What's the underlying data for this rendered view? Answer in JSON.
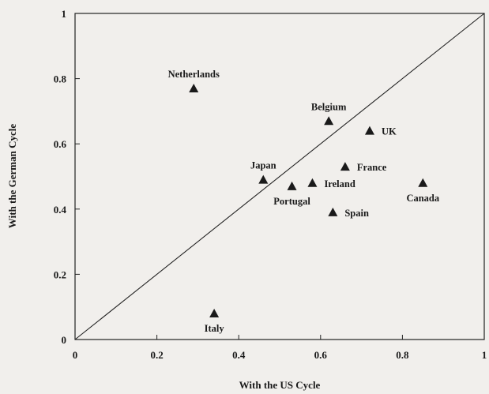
{
  "chart_data": {
    "type": "scatter",
    "xlabel": "With the US Cycle",
    "ylabel": "With the German Cycle",
    "xlim": [
      0,
      1
    ],
    "ylim": [
      0,
      1
    ],
    "xticks": [
      "0",
      "0.2",
      "0.4",
      "0.6",
      "0.8",
      "1"
    ],
    "yticks": [
      "0",
      "0.2",
      "0.4",
      "0.6",
      "0.8",
      "1"
    ],
    "grid": false,
    "diagonal_line": true,
    "marker": "triangle",
    "points": [
      {
        "label": "Netherlands",
        "x": 0.29,
        "y": 0.77,
        "label_pos": "above"
      },
      {
        "label": "Belgium",
        "x": 0.62,
        "y": 0.67,
        "label_pos": "above"
      },
      {
        "label": "UK",
        "x": 0.72,
        "y": 0.64,
        "label_pos": "right"
      },
      {
        "label": "France",
        "x": 0.66,
        "y": 0.53,
        "label_pos": "right"
      },
      {
        "label": "Japan",
        "x": 0.46,
        "y": 0.49,
        "label_pos": "above"
      },
      {
        "label": "Portugal",
        "x": 0.53,
        "y": 0.47,
        "label_pos": "below"
      },
      {
        "label": "Ireland",
        "x": 0.58,
        "y": 0.48,
        "label_pos": "right"
      },
      {
        "label": "Canada",
        "x": 0.85,
        "y": 0.48,
        "label_pos": "below"
      },
      {
        "label": "Spain",
        "x": 0.63,
        "y": 0.39,
        "label_pos": "right"
      },
      {
        "label": "Italy",
        "x": 0.34,
        "y": 0.08,
        "label_pos": "below"
      }
    ]
  }
}
